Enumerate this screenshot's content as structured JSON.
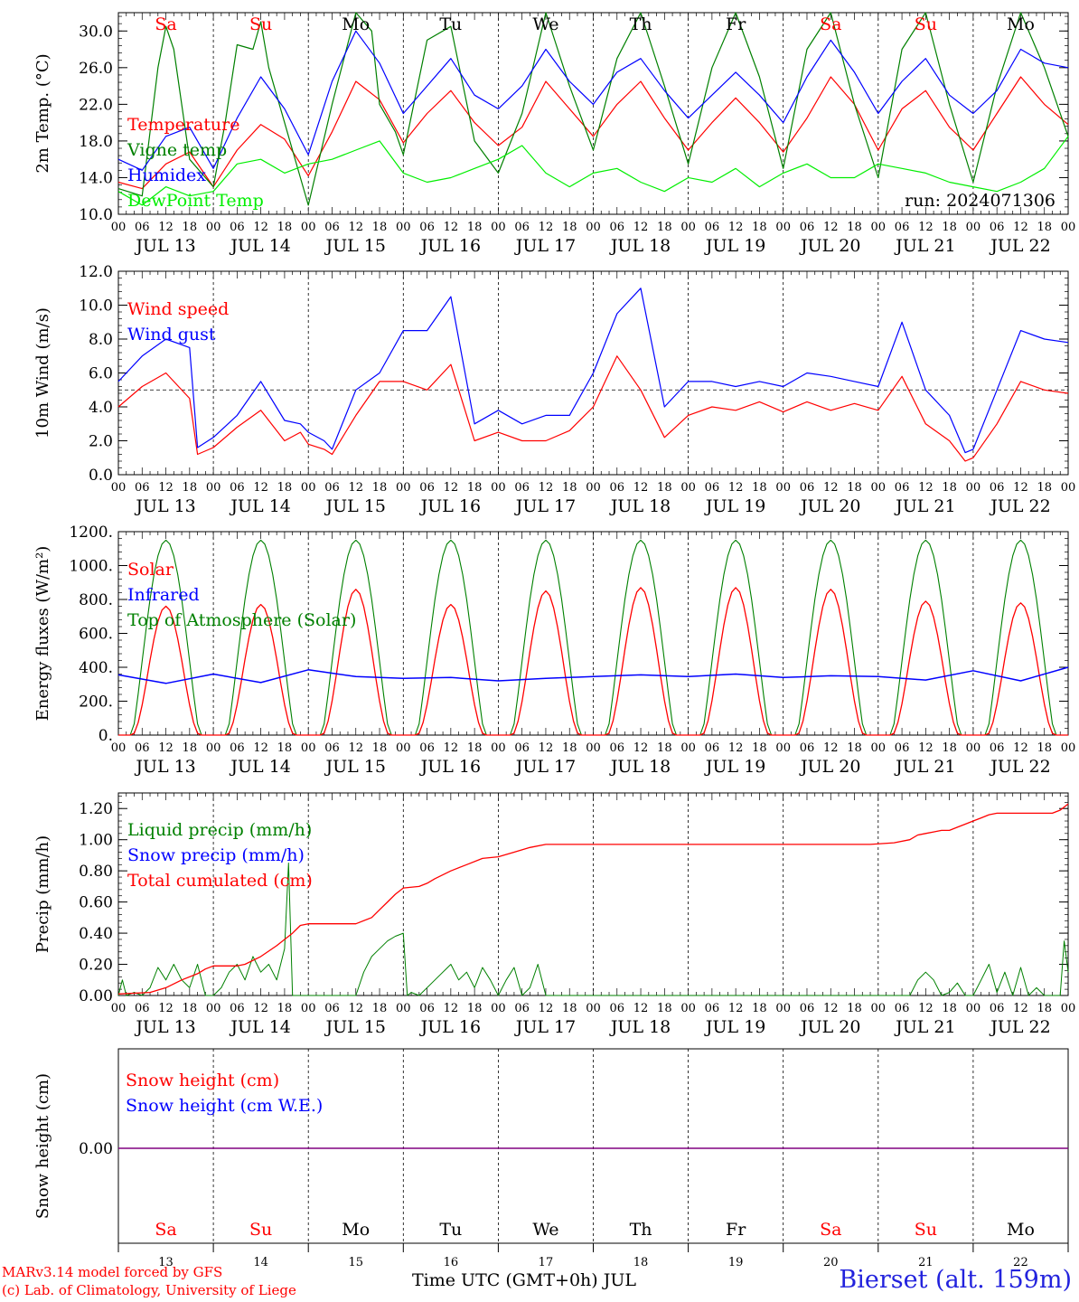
{
  "chart_data": [
    {
      "type": "line",
      "ylabel": "2m Temp. (°C)",
      "ylim": [
        10,
        32
      ],
      "yticks": [
        10,
        14,
        18,
        22,
        26,
        30
      ],
      "ytick_labels": [
        "10.0",
        "14.0",
        "18.0",
        "22.0",
        "26.0",
        "30.0"
      ],
      "grid": "vertical dashed at 00 UTC",
      "legend_placement": "left",
      "annotation": "run: 2024071306",
      "day_names": [
        "Sa",
        "Su",
        "Mo",
        "Tu",
        "We",
        "Th",
        "Fr",
        "Sa",
        "Su",
        "Mo"
      ],
      "series": [
        {
          "name": "Temperature",
          "color": "#ff0000",
          "x": [
            0,
            6,
            12,
            18,
            24,
            30,
            36,
            42,
            48,
            54,
            60,
            66,
            72,
            78,
            84,
            90,
            96,
            102,
            108,
            114,
            120,
            126,
            132,
            138,
            144,
            150,
            156,
            162,
            168,
            174,
            180,
            186,
            192,
            198,
            204,
            210,
            216,
            222,
            228,
            234,
            240
          ],
          "values": [
            13.5,
            12.8,
            15.5,
            16.8,
            13.0,
            17.0,
            19.8,
            18.2,
            14.2,
            19.0,
            24.5,
            22.5,
            17.8,
            21.0,
            23.5,
            20.0,
            17.5,
            19.5,
            24.5,
            21.5,
            18.5,
            22.0,
            24.5,
            20.5,
            17.0,
            20.0,
            22.7,
            20.0,
            16.8,
            20.5,
            25.0,
            22.0,
            17.0,
            21.5,
            23.5,
            19.5,
            17.0,
            21.0,
            25.0,
            22.0,
            19.8
          ]
        },
        {
          "name": "Vigne temp",
          "color": "#008000",
          "x": [
            0,
            6,
            10,
            12,
            14,
            18,
            24,
            27,
            30,
            34,
            36,
            38,
            42,
            46,
            48,
            54,
            60,
            64,
            66,
            70,
            72,
            78,
            84,
            90,
            96,
            102,
            108,
            114,
            120,
            126,
            132,
            138,
            144,
            150,
            156,
            162,
            168,
            174,
            180,
            186,
            192,
            198,
            204,
            210,
            216,
            222,
            228,
            234,
            240
          ],
          "values": [
            12.8,
            12.0,
            26.0,
            30.5,
            28.0,
            16.0,
            13.0,
            20.0,
            28.5,
            28.0,
            31.0,
            26.0,
            20.0,
            14.0,
            11.0,
            22.0,
            32.0,
            30.0,
            22.0,
            19.0,
            16.5,
            29.0,
            30.5,
            18.0,
            14.5,
            21.0,
            32.0,
            24.0,
            17.0,
            27.0,
            32.0,
            24.0,
            15.5,
            26.0,
            32.0,
            25.0,
            15.0,
            28.0,
            32.0,
            22.0,
            14.0,
            28.0,
            32.0,
            22.0,
            13.5,
            24.0,
            32.0,
            26.0,
            18.5
          ]
        },
        {
          "name": "Humidex",
          "color": "#0000ff",
          "x": [
            0,
            6,
            12,
            18,
            24,
            30,
            36,
            42,
            48,
            54,
            60,
            66,
            72,
            78,
            84,
            90,
            96,
            102,
            108,
            114,
            120,
            126,
            132,
            138,
            144,
            150,
            156,
            162,
            168,
            174,
            180,
            186,
            192,
            198,
            204,
            210,
            216,
            222,
            228,
            234,
            240
          ],
          "values": [
            16.0,
            14.8,
            18.5,
            19.5,
            15.0,
            20.5,
            25.0,
            21.5,
            16.5,
            24.5,
            30.0,
            26.5,
            21.0,
            24.0,
            27.0,
            23.0,
            21.5,
            24.0,
            28.0,
            24.5,
            22.0,
            25.5,
            27.0,
            23.5,
            20.5,
            23.0,
            25.5,
            23.0,
            20.0,
            25.0,
            29.0,
            25.5,
            21.0,
            24.5,
            27.0,
            23.0,
            21.0,
            23.5,
            28.0,
            26.5,
            26.0
          ]
        },
        {
          "name": "DewPoint Temp",
          "color": "#00ee00",
          "x": [
            0,
            6,
            12,
            18,
            24,
            30,
            36,
            42,
            48,
            54,
            60,
            66,
            72,
            78,
            84,
            90,
            96,
            102,
            108,
            114,
            120,
            126,
            132,
            138,
            144,
            150,
            156,
            162,
            168,
            174,
            180,
            186,
            192,
            198,
            204,
            210,
            216,
            222,
            228,
            234,
            240
          ],
          "values": [
            12.5,
            11.0,
            13.0,
            12.0,
            12.5,
            15.5,
            16.0,
            14.5,
            15.5,
            16.0,
            17.0,
            18.0,
            14.5,
            13.5,
            14.0,
            15.0,
            16.0,
            17.5,
            14.5,
            13.0,
            14.5,
            15.0,
            13.5,
            12.5,
            14.0,
            13.5,
            15.0,
            13.0,
            14.5,
            15.5,
            14.0,
            14.0,
            15.5,
            15.0,
            14.5,
            13.5,
            13.0,
            12.5,
            13.5,
            15.0,
            18.5
          ]
        }
      ]
    },
    {
      "type": "line",
      "ylabel": "10m Wind (m/s)",
      "ylim": [
        0,
        12
      ],
      "yticks": [
        0,
        2,
        4,
        6,
        8,
        10,
        12
      ],
      "ytick_labels": [
        "0.0",
        "2.0",
        "4.0",
        "6.0",
        "8.0",
        "10.0",
        "12.0"
      ],
      "reference_line": 5,
      "legend_placement": "left",
      "series": [
        {
          "name": "Wind speed",
          "color": "#ff0000",
          "x": [
            0,
            6,
            12,
            18,
            20,
            24,
            30,
            36,
            42,
            46,
            48,
            52,
            54,
            60,
            66,
            72,
            78,
            84,
            90,
            96,
            102,
            108,
            114,
            120,
            126,
            132,
            138,
            144,
            150,
            156,
            162,
            168,
            174,
            180,
            186,
            192,
            198,
            204,
            210,
            214,
            216,
            222,
            228,
            234,
            240
          ],
          "values": [
            4.0,
            5.2,
            6.0,
            4.5,
            1.2,
            1.6,
            2.8,
            3.8,
            2.0,
            2.5,
            1.8,
            1.5,
            1.2,
            3.5,
            5.5,
            5.5,
            5.0,
            6.5,
            2.0,
            2.5,
            2.0,
            2.0,
            2.6,
            4.0,
            7.0,
            5.0,
            2.2,
            3.5,
            4.0,
            3.8,
            4.3,
            3.7,
            4.3,
            3.8,
            4.2,
            3.8,
            5.8,
            3.0,
            2.0,
            0.8,
            1.0,
            3.0,
            5.5,
            5.0,
            4.8
          ]
        },
        {
          "name": "Wind gust",
          "color": "#0000ff",
          "x": [
            0,
            6,
            12,
            18,
            20,
            24,
            30,
            36,
            42,
            46,
            48,
            52,
            54,
            60,
            66,
            72,
            78,
            84,
            90,
            96,
            102,
            108,
            114,
            120,
            126,
            132,
            138,
            144,
            150,
            156,
            162,
            168,
            174,
            180,
            186,
            192,
            198,
            204,
            210,
            214,
            216,
            222,
            228,
            234,
            240
          ],
          "values": [
            5.5,
            7.0,
            8.0,
            7.5,
            1.6,
            2.2,
            3.5,
            5.5,
            3.2,
            3.0,
            2.5,
            2.0,
            1.5,
            5.0,
            6.0,
            8.5,
            8.5,
            10.5,
            3.0,
            3.8,
            3.0,
            3.5,
            3.5,
            6.0,
            9.5,
            11.0,
            4.0,
            5.5,
            5.5,
            5.2,
            5.5,
            5.2,
            6.0,
            5.8,
            5.5,
            5.2,
            9.0,
            5.0,
            3.5,
            1.3,
            1.5,
            5.0,
            8.5,
            8.0,
            7.8
          ]
        }
      ]
    },
    {
      "type": "line",
      "ylabel": "Energy fluxes (W/m²)",
      "ylim": [
        0,
        1200
      ],
      "yticks": [
        0,
        200,
        400,
        600,
        800,
        1000,
        1200
      ],
      "ytick_labels": [
        "0.",
        "200.",
        "400.",
        "600.",
        "800.",
        "1000.",
        "1200."
      ],
      "legend_placement": "left",
      "daily_solar_peak": [
        760,
        770,
        860,
        770,
        850,
        870,
        870,
        860,
        790,
        780
      ],
      "toa_peak": 1150,
      "infrared_level": [
        355,
        305,
        360,
        310,
        385,
        345,
        335,
        340,
        320,
        335,
        345,
        355,
        345,
        360,
        340,
        350,
        345,
        325,
        380,
        320,
        400
      ],
      "series": [
        {
          "name": "Solar",
          "color": "#ff0000"
        },
        {
          "name": "Infrared",
          "color": "#0000ff"
        },
        {
          "name": "Top of Atmosphere (Solar)",
          "color": "#008000"
        }
      ]
    },
    {
      "type": "line",
      "ylabel": "Precip (mm/h)",
      "ylim": [
        0,
        1.3
      ],
      "yticks": [
        0,
        0.2,
        0.4,
        0.6,
        0.8,
        1.0,
        1.2
      ],
      "ytick_labels": [
        "0.00",
        "0.20",
        "0.40",
        "0.60",
        "0.80",
        "1.00",
        "1.20"
      ],
      "legend_placement": "left",
      "series": [
        {
          "name": "Liquid precip (mm/h)",
          "color": "#008000",
          "x": [
            0,
            1,
            2,
            4,
            6,
            8,
            10,
            12,
            14,
            16,
            18,
            20,
            22,
            24,
            26,
            28,
            30,
            32,
            34,
            36,
            38,
            40,
            42,
            43,
            44,
            45,
            46,
            48,
            60,
            62,
            64,
            66,
            68,
            70,
            72,
            73,
            74,
            76,
            80,
            84,
            86,
            88,
            90,
            92,
            94,
            96,
            98,
            100,
            102,
            104,
            106,
            108,
            110,
            200,
            202,
            204,
            206,
            208,
            210,
            212,
            214,
            216,
            218,
            220,
            222,
            224,
            226,
            228,
            230,
            232,
            234,
            236,
            238,
            239,
            240
          ],
          "values": [
            0.0,
            0.1,
            0.0,
            0.02,
            0.0,
            0.05,
            0.18,
            0.1,
            0.2,
            0.1,
            0.05,
            0.2,
            0.0,
            0.0,
            0.05,
            0.15,
            0.2,
            0.1,
            0.25,
            0.15,
            0.2,
            0.1,
            0.3,
            0.85,
            0.0,
            0.0,
            0.0,
            0.0,
            0.0,
            0.15,
            0.25,
            0.3,
            0.35,
            0.38,
            0.4,
            0.0,
            0.02,
            0.0,
            0.1,
            0.2,
            0.1,
            0.15,
            0.05,
            0.18,
            0.1,
            0.0,
            0.1,
            0.18,
            0.0,
            0.05,
            0.2,
            0.0,
            0.0,
            0.0,
            0.1,
            0.15,
            0.1,
            0.0,
            0.02,
            0.08,
            0.0,
            0.0,
            0.1,
            0.2,
            0.02,
            0.15,
            0.0,
            0.18,
            0.0,
            0.05,
            0.0,
            0.0,
            0.0,
            0.35,
            0.15
          ]
        },
        {
          "name": "Snow precip (mm/h)",
          "color": "#0000ff"
        },
        {
          "name": "Total cumulated (cm)",
          "color": "#ff0000",
          "x": [
            0,
            8,
            12,
            16,
            20,
            22,
            24,
            26,
            30,
            32,
            36,
            40,
            42,
            44,
            46,
            48,
            60,
            64,
            66,
            68,
            70,
            72,
            76,
            78,
            80,
            84,
            88,
            92,
            96,
            100,
            104,
            108,
            110,
            120,
            130,
            140,
            150,
            160,
            170,
            180,
            190,
            196,
            200,
            202,
            204,
            206,
            208,
            210,
            212,
            214,
            216,
            218,
            220,
            222,
            224,
            226,
            228,
            230,
            232,
            234,
            236,
            238,
            240
          ],
          "values": [
            0.01,
            0.02,
            0.05,
            0.1,
            0.14,
            0.17,
            0.19,
            0.19,
            0.19,
            0.2,
            0.25,
            0.32,
            0.36,
            0.4,
            0.45,
            0.46,
            0.46,
            0.5,
            0.55,
            0.6,
            0.65,
            0.69,
            0.7,
            0.72,
            0.75,
            0.8,
            0.84,
            0.88,
            0.89,
            0.92,
            0.95,
            0.97,
            0.97,
            0.97,
            0.97,
            0.97,
            0.97,
            0.97,
            0.97,
            0.97,
            0.97,
            0.98,
            1.0,
            1.03,
            1.04,
            1.05,
            1.06,
            1.06,
            1.08,
            1.1,
            1.12,
            1.14,
            1.16,
            1.17,
            1.17,
            1.17,
            1.17,
            1.17,
            1.17,
            1.17,
            1.17,
            1.19,
            1.23
          ]
        }
      ]
    },
    {
      "type": "line",
      "ylabel": "Snow height (cm)",
      "ytick_labels": [
        "0.00"
      ],
      "legend_placement": "left",
      "series": [
        {
          "name": "Snow height (cm)",
          "color": "#ff0000"
        },
        {
          "name": "Snow height (cm W.E.)",
          "color": "#0000ff"
        }
      ],
      "value": 0.0
    }
  ],
  "axis": {
    "hour_labels": [
      "00",
      "06",
      "12",
      "18"
    ],
    "hour_end_label": "00",
    "dates": [
      "JUL 13",
      "JUL 14",
      "JUL 15",
      "JUL 16",
      "JUL 17",
      "JUL 18",
      "JUL 19",
      "JUL 20",
      "JUL 21",
      "JUL 22"
    ],
    "bottom_day_numbers": [
      "13",
      "14",
      "15",
      "16",
      "17",
      "18",
      "19",
      "20",
      "21",
      "22"
    ],
    "xlabel": "Time UTC (GMT+0h) JUL"
  },
  "footer": {
    "model": "MARv3.14 model forced by GFS",
    "lab": "(c) Lab. of Climatology, University of Liege",
    "station": "Bierset (alt. 159m)"
  },
  "colors": {
    "weekend": "#ff0000",
    "weekday": "#000000",
    "station": "#2222dd",
    "footer": "#ff0000",
    "snow_line": "#800080"
  }
}
